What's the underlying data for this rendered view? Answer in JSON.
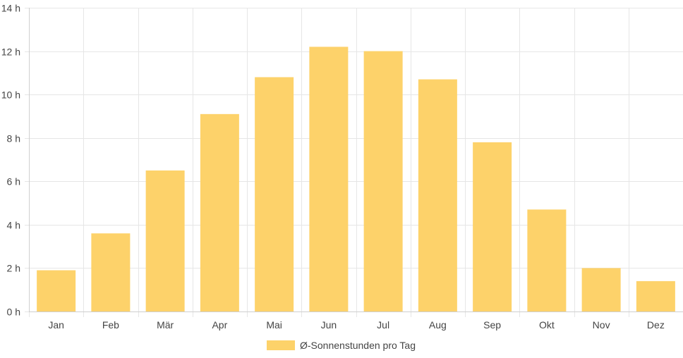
{
  "chart_data": {
    "type": "bar",
    "categories": [
      "Jan",
      "Feb",
      "Mär",
      "Apr",
      "Mai",
      "Jun",
      "Jul",
      "Aug",
      "Sep",
      "Okt",
      "Nov",
      "Dez"
    ],
    "series": [
      {
        "name": "Ø-Sonnenstunden pro Tag",
        "values": [
          1.9,
          3.6,
          6.5,
          9.1,
          10.8,
          12.2,
          12.0,
          10.7,
          7.8,
          4.7,
          2.0,
          1.4
        ],
        "color": "#fdd26a"
      }
    ],
    "ylim": [
      0,
      14
    ],
    "yticks": [
      0,
      2,
      4,
      6,
      8,
      10,
      12,
      14
    ],
    "ytick_labels": [
      "0 h",
      "2 h",
      "4 h",
      "6 h",
      "8 h",
      "10 h",
      "12 h",
      "14 h"
    ],
    "grid": true,
    "legend": "bottom",
    "colors": {
      "grid": "#e6e6e6",
      "axis": "#cfcfcf",
      "text": "#444444"
    }
  }
}
